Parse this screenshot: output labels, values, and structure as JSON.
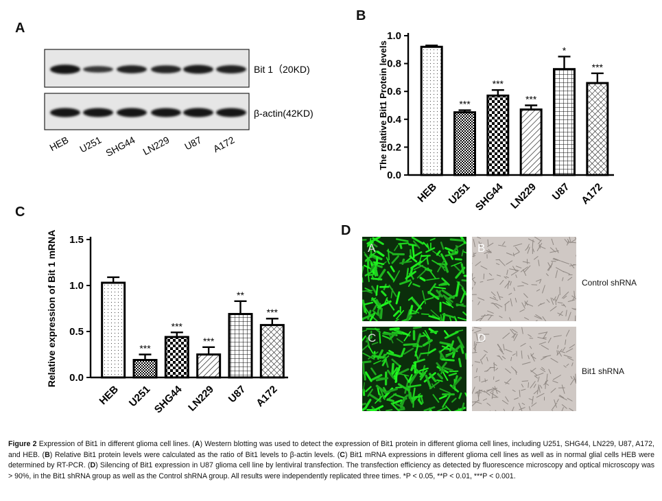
{
  "panels": {
    "A": {
      "letter": "A",
      "bands": [
        {
          "label": "Bit 1（20KD)",
          "intensity": [
            0.95,
            0.45,
            0.72,
            0.7,
            0.85,
            0.75
          ]
        },
        {
          "label": "β-actin(42KD)",
          "intensity": [
            0.9,
            0.88,
            0.9,
            0.88,
            0.9,
            0.88
          ]
        }
      ],
      "lanes": [
        "HEB",
        "U251",
        "SHG44",
        "LN229",
        "U87",
        "A172"
      ]
    },
    "B": {
      "letter": "B"
    },
    "C": {
      "letter": "C"
    },
    "D": {
      "letter": "D",
      "tiles": [
        {
          "label": "A",
          "kind": "fluorescence"
        },
        {
          "label": "B",
          "kind": "brightfield"
        },
        {
          "label": "C",
          "kind": "fluorescence"
        },
        {
          "label": "D",
          "kind": "brightfield"
        }
      ],
      "row_labels": [
        "Control  shRNA",
        "Bit1 shRNA"
      ]
    }
  },
  "chart_data": [
    {
      "type": "bar",
      "panel": "B",
      "categories": [
        "HEB",
        "U251",
        "SHG44",
        "LN229",
        "U87",
        "A172"
      ],
      "values": [
        0.92,
        0.45,
        0.57,
        0.47,
        0.76,
        0.66
      ],
      "errors": [
        0.01,
        0.015,
        0.04,
        0.03,
        0.09,
        0.07
      ],
      "significance": [
        "",
        "***",
        "***",
        "***",
        "*",
        "***"
      ],
      "patterns": [
        "dots",
        "checker-small",
        "checker-large",
        "diagonal",
        "grid",
        "crosshatch"
      ],
      "ylabel": "The  relative  Bit1 Protein levels",
      "ylim": [
        0,
        1.0
      ],
      "yticks": [
        "0.0",
        "0.2",
        "0.4",
        "0.6",
        "0.8",
        "1.0"
      ]
    },
    {
      "type": "bar",
      "panel": "C",
      "categories": [
        "HEB",
        "U251",
        "SHG44",
        "LN229",
        "U87",
        "A172"
      ],
      "values": [
        1.03,
        0.19,
        0.44,
        0.25,
        0.69,
        0.57
      ],
      "errors": [
        0.06,
        0.06,
        0.05,
        0.08,
        0.14,
        0.07
      ],
      "significance": [
        "",
        "***",
        "***",
        "***",
        "**",
        "***"
      ],
      "patterns": [
        "dots",
        "checker-small",
        "checker-large",
        "diagonal",
        "grid",
        "crosshatch"
      ],
      "ylabel": "Relative  expression of Bit 1 mRNA",
      "ylim": [
        0,
        1.5
      ],
      "yticks": [
        "0.0",
        "0.5",
        "1.0",
        "1.5"
      ]
    }
  ],
  "caption": {
    "figure_label": "Figure 2",
    "intro": " Expression of Bit1 in different glioma cell lines. (",
    "A": "A",
    "part_a": ") Western blotting was used to detect the expression of Bit1 protein in different glioma cell lines, including U251, SHG44, LN229, U87, A172, and HEB. (",
    "B": "B",
    "part_b": ") Relative Bit1 protein levels were calculated as the ratio of Bit1 levels to β-actin levels. (",
    "C": "C",
    "part_c": ") Bit1 mRNA expressions in different glioma cell lines as well as in normal glial cells HEB were determined by RT-PCR. (",
    "D": "D",
    "part_d": ") Silencing of Bit1 expression in U87 glioma cell line by lentiviral transfection. The transfection efficiency as detected by fluorescence microscopy and optical microscopy was > 90%, in the Bit1 shRNA group as well as the Control shRNA group. All results were independently replicated three times. *P < 0.05, **P < 0.01, ***P < 0.001."
  }
}
